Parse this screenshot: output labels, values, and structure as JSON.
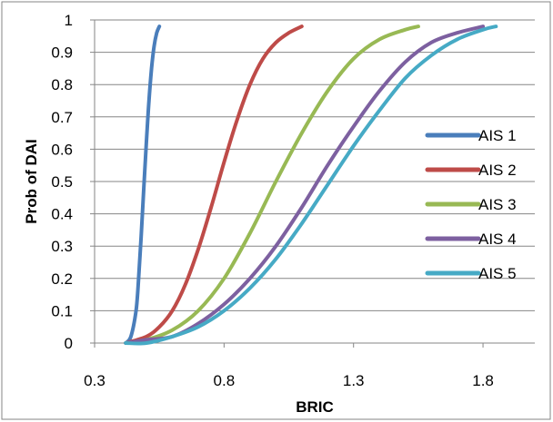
{
  "chart_data": {
    "type": "line",
    "title": "",
    "xlabel": "BRIC",
    "ylabel": "Prob of DAI",
    "xlim": [
      0.3,
      2.0
    ],
    "ylim": [
      0,
      1
    ],
    "x_ticks": [
      0.3,
      0.8,
      1.3,
      1.8
    ],
    "x_tick_labels": [
      "0.3",
      "0.8",
      "1.3",
      "1.8"
    ],
    "y_ticks": [
      0,
      0.1,
      0.2,
      0.3,
      0.4,
      0.5,
      0.6,
      0.7,
      0.8,
      0.9,
      1
    ],
    "y_tick_labels": [
      "0",
      "0.1",
      "0.2",
      "0.3",
      "0.4",
      "0.5",
      "0.6",
      "0.7",
      "0.8",
      "0.9",
      "1"
    ],
    "grid": "horizontal",
    "legend_position": "right",
    "series": [
      {
        "name": "AIS 1",
        "color": "#4a7ebb",
        "x": [
          0.42,
          0.44,
          0.46,
          0.47,
          0.48,
          0.49,
          0.5,
          0.51,
          0.52,
          0.53,
          0.54,
          0.55
        ],
        "y": [
          0.0,
          0.02,
          0.1,
          0.2,
          0.33,
          0.48,
          0.62,
          0.75,
          0.85,
          0.92,
          0.96,
          0.98
        ]
      },
      {
        "name": "AIS 2",
        "color": "#be4b48",
        "x": [
          0.42,
          0.5,
          0.55,
          0.6,
          0.65,
          0.7,
          0.75,
          0.8,
          0.85,
          0.9,
          0.95,
          1.0,
          1.05,
          1.1
        ],
        "y": [
          0.0,
          0.02,
          0.05,
          0.1,
          0.18,
          0.29,
          0.42,
          0.56,
          0.69,
          0.8,
          0.88,
          0.93,
          0.96,
          0.98
        ]
      },
      {
        "name": "AIS 3",
        "color": "#98b954",
        "x": [
          0.42,
          0.5,
          0.6,
          0.7,
          0.8,
          0.9,
          1.0,
          1.1,
          1.2,
          1.3,
          1.4,
          1.5,
          1.55
        ],
        "y": [
          0.0,
          0.01,
          0.04,
          0.1,
          0.2,
          0.34,
          0.5,
          0.65,
          0.78,
          0.88,
          0.94,
          0.97,
          0.98
        ]
      },
      {
        "name": "AIS 4",
        "color": "#7d60a0",
        "x": [
          0.42,
          0.5,
          0.6,
          0.7,
          0.8,
          0.9,
          1.0,
          1.1,
          1.2,
          1.3,
          1.4,
          1.5,
          1.6,
          1.7,
          1.8
        ],
        "y": [
          0.0,
          0.01,
          0.02,
          0.06,
          0.12,
          0.2,
          0.3,
          0.42,
          0.55,
          0.67,
          0.78,
          0.87,
          0.93,
          0.96,
          0.98
        ]
      },
      {
        "name": "AIS 5",
        "color": "#46aac5",
        "x": [
          0.42,
          0.5,
          0.6,
          0.7,
          0.8,
          0.9,
          1.0,
          1.1,
          1.2,
          1.3,
          1.4,
          1.5,
          1.6,
          1.7,
          1.8,
          1.85
        ],
        "y": [
          0.0,
          0.0,
          0.02,
          0.05,
          0.1,
          0.17,
          0.26,
          0.37,
          0.49,
          0.61,
          0.72,
          0.82,
          0.89,
          0.94,
          0.97,
          0.98
        ]
      }
    ]
  }
}
